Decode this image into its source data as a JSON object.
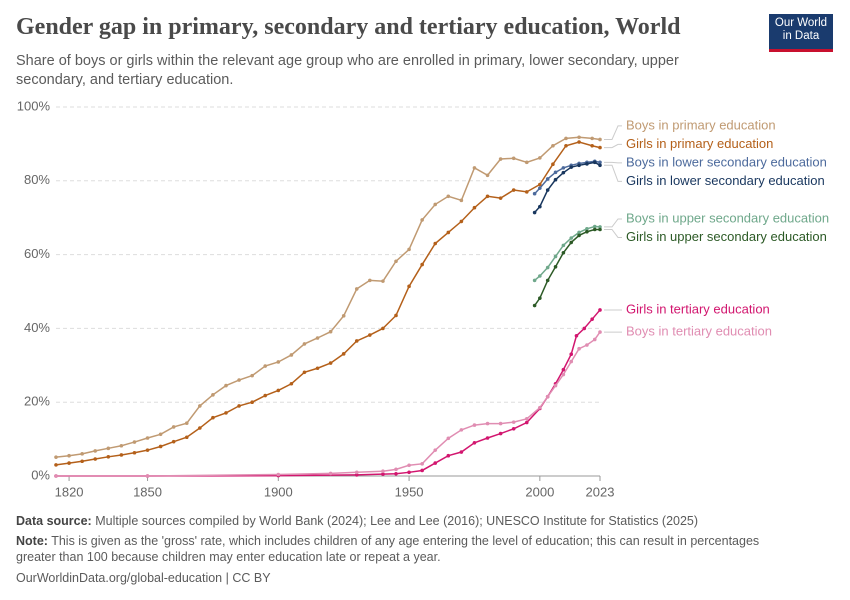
{
  "chart_data": {
    "type": "line",
    "title": "Gender gap in primary, secondary and tertiary education, World",
    "subtitle": "Share of boys or girls within the relevant age group who are enrolled in primary, lower secondary, upper secondary, and tertiary education.",
    "logo": [
      "Our World",
      "in Data"
    ],
    "source_label": "Data source:",
    "source": "Multiple sources compiled by World Bank (2024); Lee and Lee (2016); UNESCO Institute for Statistics (2025)",
    "note_label": "Note:",
    "note": "This is given as the 'gross' rate, which includes children of any age entering the level of education; this can result in percentages greater than 100 because children may enter education late or repeat a year.",
    "footer": "OurWorldinData.org/global-education | CC BY",
    "xlim": [
      1815,
      2023
    ],
    "ylim": [
      0,
      100
    ],
    "xticks": [
      1820,
      1850,
      1900,
      1950,
      2000,
      2023
    ],
    "yticks": [
      {
        "value": 0,
        "label": "0%"
      },
      {
        "value": 20,
        "label": "20%"
      },
      {
        "value": 40,
        "label": "40%"
      },
      {
        "value": 60,
        "label": "60%"
      },
      {
        "value": 80,
        "label": "80%"
      },
      {
        "value": 100,
        "label": "100%"
      }
    ],
    "grid": true,
    "series": [
      {
        "name": "Boys in primary education",
        "color": "#c09a72",
        "x": [
          1815,
          1820,
          1825,
          1830,
          1835,
          1840,
          1845,
          1850,
          1855,
          1860,
          1865,
          1870,
          1875,
          1880,
          1885,
          1890,
          1895,
          1900,
          1905,
          1910,
          1915,
          1920,
          1925,
          1930,
          1935,
          1940,
          1945,
          1950,
          1955,
          1960,
          1965,
          1970,
          1975,
          1980,
          1985,
          1990,
          1995,
          2000,
          2005,
          2010,
          2015,
          2020,
          2023
        ],
        "values": [
          5.1,
          5.5,
          6,
          6.8,
          7.5,
          8.2,
          9.2,
          10.3,
          11.3,
          13.3,
          14.3,
          19,
          22,
          24.5,
          26,
          27.2,
          29.8,
          30.9,
          32.8,
          35.8,
          37.4,
          39.1,
          43.4,
          50.7,
          53,
          52.8,
          58.2,
          61.4,
          69.4,
          73.6,
          75.8,
          74.7,
          83.5,
          81.5,
          85.9,
          86.1,
          85,
          86.2,
          89.5,
          91.5,
          91.8,
          91.5,
          91.2
        ]
      },
      {
        "name": "Girls in primary education",
        "color": "#b4601a",
        "x": [
          1815,
          1820,
          1825,
          1830,
          1835,
          1840,
          1845,
          1850,
          1855,
          1860,
          1865,
          1870,
          1875,
          1880,
          1885,
          1890,
          1895,
          1900,
          1905,
          1910,
          1915,
          1920,
          1925,
          1930,
          1935,
          1940,
          1945,
          1950,
          1955,
          1960,
          1965,
          1970,
          1975,
          1980,
          1985,
          1990,
          1995,
          2000,
          2005,
          2010,
          2015,
          2020,
          2023
        ],
        "values": [
          3,
          3.5,
          4,
          4.6,
          5.2,
          5.7,
          6.3,
          7,
          8,
          9.3,
          10.5,
          13,
          15.8,
          17.1,
          19,
          20,
          21.8,
          23.2,
          25,
          28.1,
          29.2,
          30.6,
          33.1,
          36.6,
          38.2,
          40,
          43.5,
          51.4,
          57.3,
          63,
          66,
          69,
          72.7,
          75.8,
          75.3,
          77.5,
          77,
          79,
          84.5,
          89.5,
          90.5,
          89.5,
          89
        ]
      },
      {
        "name": "Boys in lower secondary education",
        "color": "#4c6a9c",
        "x": [
          1998,
          2000,
          2003,
          2006,
          2009,
          2012,
          2015,
          2018,
          2021,
          2023
        ],
        "values": [
          76.5,
          78,
          80.5,
          82.3,
          83.5,
          84.2,
          84.7,
          85,
          85.3,
          85
        ]
      },
      {
        "name": "Girls in lower secondary education",
        "color": "#18365e",
        "x": [
          1998,
          2000,
          2003,
          2006,
          2009,
          2012,
          2015,
          2018,
          2021,
          2023
        ],
        "values": [
          71.4,
          73,
          77.5,
          80.3,
          82.2,
          83.7,
          84.2,
          84.6,
          85,
          84.2
        ]
      },
      {
        "name": "Boys in upper secondary education",
        "color": "#6fa88b",
        "x": [
          1998,
          2000,
          2003,
          2006,
          2009,
          2012,
          2015,
          2018,
          2021,
          2023
        ],
        "values": [
          53,
          54.2,
          56.5,
          59.5,
          62.5,
          64.5,
          66,
          67,
          67.6,
          67.5
        ]
      },
      {
        "name": "Girls in upper secondary education",
        "color": "#2c5a26",
        "x": [
          1998,
          2000,
          2003,
          2006,
          2009,
          2012,
          2015,
          2018,
          2021,
          2023
        ],
        "values": [
          46.2,
          48.2,
          53,
          56.7,
          60.5,
          63.3,
          65.2,
          66.2,
          66.8,
          66.8
        ]
      },
      {
        "name": "Girls in tertiary education",
        "color": "#d2166f",
        "x": [
          1815,
          1850,
          1900,
          1930,
          1940,
          1945,
          1950,
          1955,
          1960,
          1965,
          1970,
          1975,
          1980,
          1985,
          1990,
          1995,
          2000,
          2003,
          2006,
          2009,
          2012,
          2014,
          2017,
          2020,
          2023
        ],
        "values": [
          0,
          0,
          0.1,
          0.3,
          0.5,
          0.6,
          1,
          1.5,
          3.5,
          5.5,
          6.5,
          9,
          10.3,
          11.5,
          12.8,
          14.5,
          18.3,
          21.5,
          25,
          28.8,
          33,
          38,
          40,
          42.5,
          45
        ]
      },
      {
        "name": "Boys in tertiary education",
        "color": "#e08db2",
        "x": [
          1815,
          1850,
          1900,
          1920,
          1930,
          1940,
          1945,
          1950,
          1955,
          1960,
          1965,
          1970,
          1975,
          1980,
          1985,
          1990,
          1995,
          2000,
          2003,
          2006,
          2009,
          2012,
          2015,
          2018,
          2021,
          2023
        ],
        "values": [
          0,
          0,
          0.4,
          0.7,
          1,
          1.3,
          1.8,
          2.9,
          3.3,
          7,
          10.2,
          12.5,
          13.8,
          14.2,
          14.2,
          14.6,
          15.5,
          18.5,
          21.5,
          24.5,
          27.5,
          31,
          34.5,
          35.5,
          37,
          39
        ]
      }
    ]
  }
}
